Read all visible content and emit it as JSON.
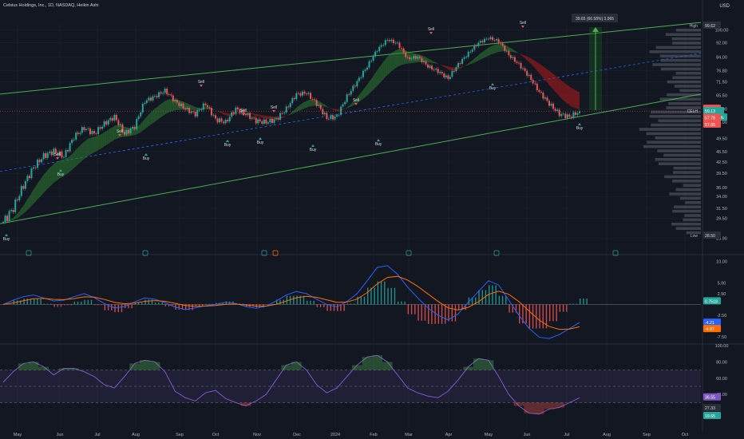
{
  "header": {
    "title": "Celsius Holdings, Inc., 1D, NASDAQ, Heikin Ashi",
    "currency": "USD"
  },
  "colors": {
    "bg": "#131722",
    "grid": "#1e222d",
    "up": "#26a69a",
    "down": "#ef5350",
    "bullMA": "#1b5e20",
    "bearMA": "#7f1d1d",
    "channel": "#4caf50",
    "mid": "#2962ff",
    "macd": "#2962ff",
    "signal": "#ff6d00",
    "rsi": "#7e57c2"
  },
  "price_axis": {
    "ticks": [
      "100.00",
      "92.00",
      "84.00",
      "76.80",
      "71.50",
      "65.50",
      "60.00",
      "55.00",
      "49.50",
      "45.50",
      "42.50",
      "39.50",
      "36.00",
      "34.00",
      "31.50",
      "29.50",
      "25.90"
    ],
    "badges": {
      "high_label": "High",
      "high": "99.62",
      "last1": "60.08",
      "symbol": "CELH",
      "last": "59.13",
      "change": "+103.69%",
      "p1": "57.78",
      "p2": "57.65",
      "low_label": "Low",
      "low": "28.50"
    }
  },
  "macd_axis": {
    "ticks": [
      "10.00",
      "5.00",
      "2.50",
      "-2.50",
      "-7.50"
    ],
    "badges": {
      "hist": "0.7518",
      "macd": "-4.21",
      "signal": "-4.97"
    }
  },
  "rsi_axis": {
    "ticks": [
      "100.00",
      "80.00",
      "60.00",
      "40.00"
    ],
    "badges": {
      "rsi": "36.55",
      "a": "27.33",
      "b": "19.65"
    }
  },
  "time_axis": {
    "labels": [
      "May",
      "Jun",
      "Jul",
      "Aug",
      "Sep",
      "Oct",
      "Nov",
      "Dec",
      "2024",
      "Feb",
      "Mar",
      "Apr",
      "May",
      "Jun",
      "Jul",
      "Aug",
      "Sep",
      "Oct"
    ]
  },
  "measure": {
    "label": "39.65 (66.58%) 3,965"
  },
  "chart_data": [
    {
      "type": "candlestick",
      "title": "Celsius Holdings, Inc., 1D, NASDAQ, Heikin Ashi",
      "y_scale": "log",
      "ylim": [
        26,
        104
      ],
      "close_approx": [
        28.8,
        31.5,
        36.5,
        41,
        44.2,
        45.6,
        44,
        50,
        53,
        51,
        54.5,
        57,
        51,
        53.5,
        63,
        65,
        67.5,
        63,
        60,
        58,
        62,
        56,
        55,
        60,
        58,
        55.5,
        55,
        56,
        60,
        66,
        66.5,
        62,
        56.5,
        57,
        65,
        71.5,
        79,
        88,
        94,
        91.5,
        83,
        84,
        79,
        76.5,
        73,
        80,
        86,
        92,
        95,
        93,
        85,
        80,
        74,
        67,
        62,
        58,
        57,
        59
      ],
      "series": [
        {
          "name": "Sell",
          "values": [
            "Sell",
            "Sell",
            "Sell",
            "Sell",
            "Sell",
            "Sell",
            "Sell",
            "Sell"
          ]
        },
        {
          "name": "Buy",
          "values": [
            "Buy",
            "Buy",
            "Buy",
            "Buy",
            "Buy",
            "Buy",
            "Buy",
            "Buy",
            "Buy",
            "Buy",
            "Buy"
          ]
        }
      ],
      "channel": {
        "upper_start": 66,
        "upper_end": 105,
        "lower_start": 28.5,
        "lower_end": 66,
        "mid_start": 40,
        "mid_end": 86
      }
    },
    {
      "type": "line",
      "name": "MACD",
      "ylim": [
        -9,
        11
      ],
      "note": "MACD with histogram",
      "macd": [
        0,
        1,
        1.8,
        2.2,
        1.5,
        0.8,
        1,
        1.8,
        2.5,
        1.6,
        0.2,
        -0.8,
        -0.5,
        0.6,
        1.5,
        1.2,
        0.4,
        -0.6,
        -1.2,
        -0.8,
        -0.3,
        0,
        0.5,
        0.2,
        -0.5,
        -0.9,
        -0.4,
        0.8,
        2.2,
        3,
        2.5,
        1.2,
        0,
        -0.6,
        0.7,
        2.5,
        5.5,
        8.6,
        9,
        7,
        4,
        1.5,
        -0.8,
        -2.5,
        -3.6,
        -2.2,
        0.5,
        3,
        5.5,
        4.5,
        1,
        -2.5,
        -5.5,
        -7.6,
        -7.9,
        -7,
        -5.6,
        -4.2
      ]
    },
    {
      "type": "line",
      "name": "RSI",
      "ylim": [
        0,
        100
      ],
      "values": [
        55,
        68,
        78,
        80,
        74,
        64,
        72,
        72,
        68,
        62,
        52,
        48,
        62,
        78,
        82,
        80,
        68,
        44,
        36,
        32,
        42,
        45,
        35,
        30,
        26,
        32,
        40,
        58,
        76,
        80,
        70,
        52,
        42,
        48,
        62,
        76,
        86,
        88,
        80,
        64,
        48,
        42,
        38,
        36,
        44,
        58,
        74,
        84,
        82,
        62,
        40,
        26,
        17,
        16,
        22,
        24,
        30,
        36
      ]
    }
  ]
}
